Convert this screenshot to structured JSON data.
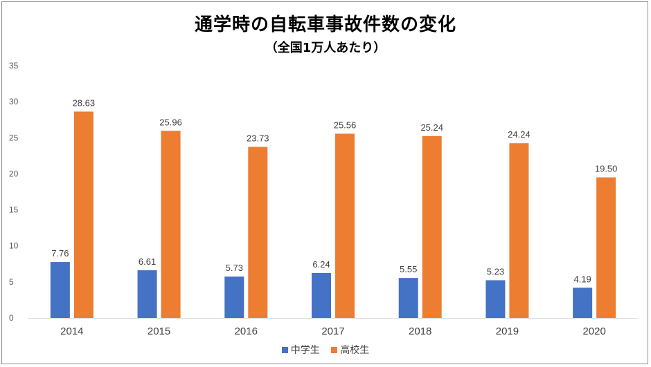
{
  "chart_data": {
    "type": "bar",
    "title": "通学時の自転車事故件数の変化",
    "subtitle": "（全国1万人あたり）",
    "categories": [
      "2014",
      "2015",
      "2016",
      "2017",
      "2018",
      "2019",
      "2020"
    ],
    "series": [
      {
        "name": "中学生",
        "color": "#4472C4",
        "values": [
          7.76,
          6.61,
          5.73,
          6.24,
          5.55,
          5.23,
          4.19
        ],
        "labels": [
          "7.76",
          "6.61",
          "5.73",
          "6.24",
          "5.55",
          "5.23",
          "4.19"
        ]
      },
      {
        "name": "高校生",
        "color": "#ED7D31",
        "values": [
          28.63,
          25.96,
          23.73,
          25.56,
          25.24,
          24.24,
          19.5
        ],
        "labels": [
          "28.63",
          "25.96",
          "23.73",
          "25.56",
          "25.24",
          "24.24",
          "19.50"
        ]
      }
    ],
    "ylim": [
      0,
      35
    ],
    "yticks": [
      "0",
      "5",
      "10",
      "15",
      "20",
      "25",
      "30",
      "35"
    ],
    "grid": false,
    "legend_position": "bottom",
    "xlabel": "",
    "ylabel": ""
  }
}
